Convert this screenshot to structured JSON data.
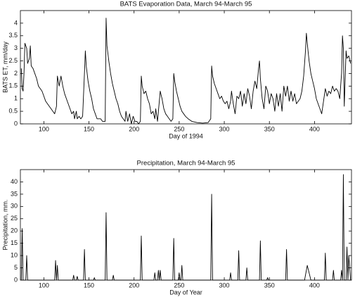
{
  "chart_data": [
    {
      "type": "line",
      "title": "BATS Evaporation Data, March 94-March 95",
      "xlabel": "Day of 1994",
      "ylabel": "BATS ET, mm/day",
      "xlim": [
        74,
        441
      ],
      "xticks": [
        100,
        150,
        200,
        250,
        300,
        350,
        400
      ],
      "ylim": [
        0,
        4.5
      ],
      "yticks": [
        0,
        0.5,
        1,
        1.5,
        2,
        2.5,
        3,
        3.5,
        4
      ],
      "series": [
        {
          "color": "#000000",
          "x": [
            75,
            76,
            77,
            78,
            79,
            81,
            82,
            84,
            85,
            86,
            88,
            90,
            92,
            94,
            96,
            98,
            100,
            102,
            104,
            106,
            108,
            110,
            112,
            114,
            115,
            117,
            119,
            121,
            123,
            125,
            127,
            129,
            131,
            133,
            134,
            136,
            137,
            139,
            141,
            143,
            145,
            146,
            147,
            149,
            151,
            153,
            155,
            157,
            159,
            161,
            163,
            165,
            168,
            169,
            170,
            172,
            174,
            176,
            178,
            180,
            182,
            184,
            186,
            188,
            190,
            191,
            193,
            195,
            197,
            199,
            201,
            203,
            205,
            207,
            208,
            209,
            211,
            213,
            215,
            217,
            219,
            221,
            223,
            224,
            226,
            228,
            229,
            231,
            233,
            235,
            237,
            239,
            241,
            243,
            244,
            245,
            247,
            249,
            251,
            253,
            255,
            257,
            260,
            264,
            270,
            276,
            282,
            285,
            286,
            287,
            289,
            291,
            293,
            295,
            297,
            299,
            301,
            303,
            305,
            307,
            308,
            310,
            312,
            314,
            316,
            318,
            320,
            322,
            324,
            326,
            328,
            330,
            332,
            334,
            336,
            338,
            339,
            340,
            342,
            344,
            346,
            348,
            350,
            352,
            354,
            356,
            358,
            360,
            362,
            364,
            366,
            368,
            370,
            372,
            374,
            376,
            378,
            380,
            382,
            384,
            386,
            388,
            390,
            391,
            392,
            394,
            396,
            398,
            400,
            402,
            404,
            406,
            408,
            410,
            412,
            414,
            416,
            418,
            420,
            422,
            424,
            426,
            428,
            430,
            431,
            432,
            433,
            435,
            436,
            438,
            440
          ],
          "values": [
            2.2,
            1.4,
            1.3,
            2.0,
            3.2,
            3.0,
            2.4,
            2.6,
            3.1,
            2.3,
            2.2,
            2.0,
            1.8,
            1.5,
            1.4,
            1.3,
            1.1,
            0.9,
            0.8,
            0.7,
            0.6,
            0.5,
            0.4,
            0.7,
            1.9,
            1.5,
            1.9,
            1.5,
            1.2,
            1.0,
            0.8,
            0.6,
            0.4,
            0.5,
            0.2,
            0.5,
            0.2,
            0.3,
            0.2,
            0.3,
            2.0,
            2.9,
            2.3,
            1.7,
            1.3,
            1.0,
            0.6,
            0.4,
            0.2,
            0.2,
            0.2,
            0.1,
            0.1,
            4.2,
            3.1,
            2.5,
            2.0,
            1.6,
            1.3,
            1.0,
            0.8,
            0.5,
            0.3,
            0.2,
            0.1,
            0.5,
            0.1,
            0.4,
            0.0,
            0.3,
            0.1,
            0.1,
            0.0,
            0.1,
            1.9,
            1.5,
            1.2,
            1.3,
            1.0,
            0.8,
            0.4,
            0.5,
            0.2,
            0.6,
            0.1,
            0.9,
            1.3,
            1.0,
            0.6,
            0.4,
            0.3,
            0.2,
            0.1,
            0.2,
            2.0,
            1.7,
            1.3,
            1.0,
            0.7,
            0.5,
            0.4,
            0.3,
            0.2,
            0.1,
            0.05,
            0.03,
            0.05,
            0.2,
            2.3,
            1.9,
            1.6,
            1.4,
            1.2,
            1.0,
            1.1,
            0.9,
            0.8,
            0.9,
            0.6,
            0.9,
            1.3,
            0.8,
            0.4,
            1.1,
            1.0,
            1.3,
            0.7,
            1.2,
            0.8,
            1.4,
            1.1,
            0.6,
            1.3,
            1.7,
            1.4,
            2.2,
            2.5,
            1.8,
            1.0,
            0.6,
            1.5,
            1.3,
            0.8,
            1.2,
            1.0,
            0.5,
            1.2,
            0.7,
            1.2,
            0.5,
            1.5,
            1.1,
            1.5,
            0.9,
            1.3,
            0.9,
            1.2,
            0.8,
            0.9,
            1.0,
            1.3,
            1.9,
            2.9,
            3.6,
            3.2,
            2.5,
            2.0,
            1.7,
            1.4,
            1.0,
            0.8,
            0.6,
            0.4,
            0.9,
            1.4,
            1.1,
            1.3,
            1.2,
            1.5,
            1.3,
            1.4,
            1.3,
            1.0,
            2.0,
            3.5,
            3.0,
            0.7,
            2.9,
            2.6,
            2.7,
            2.4
          ]
        }
      ]
    },
    {
      "type": "line",
      "title": "Precipitation, March 94-March 95",
      "xlabel": "Day of Year",
      "ylabel": "Precipitation, mm.",
      "xlim": [
        74,
        441
      ],
      "xticks": [
        100,
        150,
        200,
        250,
        300,
        350,
        400
      ],
      "ylim": [
        0,
        45
      ],
      "yticks": [
        0,
        5,
        10,
        15,
        20,
        25,
        30,
        35,
        40
      ],
      "series": [
        {
          "color": "#000000",
          "x": [
            75,
            76,
            77,
            80,
            81,
            82,
            112,
            113,
            114,
            115,
            116,
            132,
            133,
            134,
            136,
            137,
            138,
            144,
            145,
            146,
            155,
            156,
            157,
            168,
            169,
            170,
            176,
            177,
            178,
            207,
            208,
            209,
            222,
            223,
            224,
            226,
            227,
            228,
            229,
            230,
            243,
            244,
            245,
            249,
            250,
            251,
            252,
            253,
            254,
            285,
            286,
            287,
            306,
            307,
            308,
            315,
            316,
            317,
            324,
            325,
            326,
            339,
            340,
            341,
            347,
            348,
            349,
            368,
            369,
            370,
            389,
            392,
            396,
            411,
            412,
            413,
            420,
            421,
            422,
            429,
            430,
            431,
            432,
            433,
            435,
            436,
            437,
            438,
            440
          ],
          "values": [
            0,
            21,
            0,
            0,
            10,
            0,
            0,
            8,
            0,
            6,
            0,
            0,
            2,
            0,
            0,
            1.5,
            0,
            0,
            12.5,
            0,
            0,
            1,
            0,
            0,
            27.5,
            0,
            0,
            2,
            0,
            0,
            18,
            0,
            0,
            3,
            0,
            0,
            4,
            0,
            4,
            0,
            0,
            17,
            0,
            0,
            3,
            0,
            0,
            6,
            0,
            0,
            35,
            0,
            0,
            3,
            0,
            0,
            12,
            0,
            0,
            5,
            0,
            0,
            16,
            0,
            0,
            1,
            0,
            0,
            12.5,
            0,
            0,
            6,
            0,
            0,
            11,
            0,
            0,
            4,
            0,
            0,
            4,
            0,
            43,
            0,
            0,
            13.5,
            0,
            10,
            0
          ]
        }
      ]
    }
  ]
}
